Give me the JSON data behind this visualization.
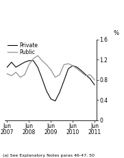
{
  "private_x": [
    0,
    1,
    2,
    3,
    4,
    5,
    6,
    7,
    8,
    9,
    10,
    11,
    12,
    13,
    14,
    15,
    16,
    17,
    18,
    19,
    20
  ],
  "private_y": [
    1.05,
    1.15,
    1.05,
    1.1,
    1.15,
    1.18,
    1.18,
    1.05,
    0.82,
    0.58,
    0.42,
    0.38,
    0.55,
    0.78,
    1.02,
    1.08,
    1.05,
    0.98,
    0.9,
    0.82,
    0.7
  ],
  "public_x": [
    0,
    1,
    2,
    3,
    4,
    5,
    6,
    7,
    8,
    9,
    10,
    11,
    12,
    13,
    14,
    15,
    16,
    17,
    18,
    19,
    20
  ],
  "public_y": [
    0.92,
    0.88,
    0.95,
    0.85,
    0.9,
    1.1,
    1.22,
    1.28,
    1.18,
    1.1,
    1.0,
    0.85,
    0.9,
    1.1,
    1.12,
    1.08,
    1.02,
    0.95,
    0.88,
    0.9,
    0.8
  ],
  "private_color": "#000000",
  "public_color": "#999999",
  "ylim": [
    0,
    1.6
  ],
  "yticks": [
    0,
    0.4,
    0.8,
    1.2,
    1.6
  ],
  "ytick_labels": [
    "0",
    "0.4",
    "0.8",
    "1.2",
    "1.6"
  ],
  "ylabel": "%",
  "xtick_positions": [
    0,
    5,
    10,
    15,
    20
  ],
  "xtick_labels": [
    "Jun\n2007",
    "Jun\n2008",
    "Jun\n2009",
    "Jun\n2010",
    "Jun\n2011"
  ],
  "legend_private": "Private",
  "legend_public": "Public",
  "footnote": "(a) See Explanatory Notes paras 46-47, 50",
  "bg_color": "#ffffff"
}
